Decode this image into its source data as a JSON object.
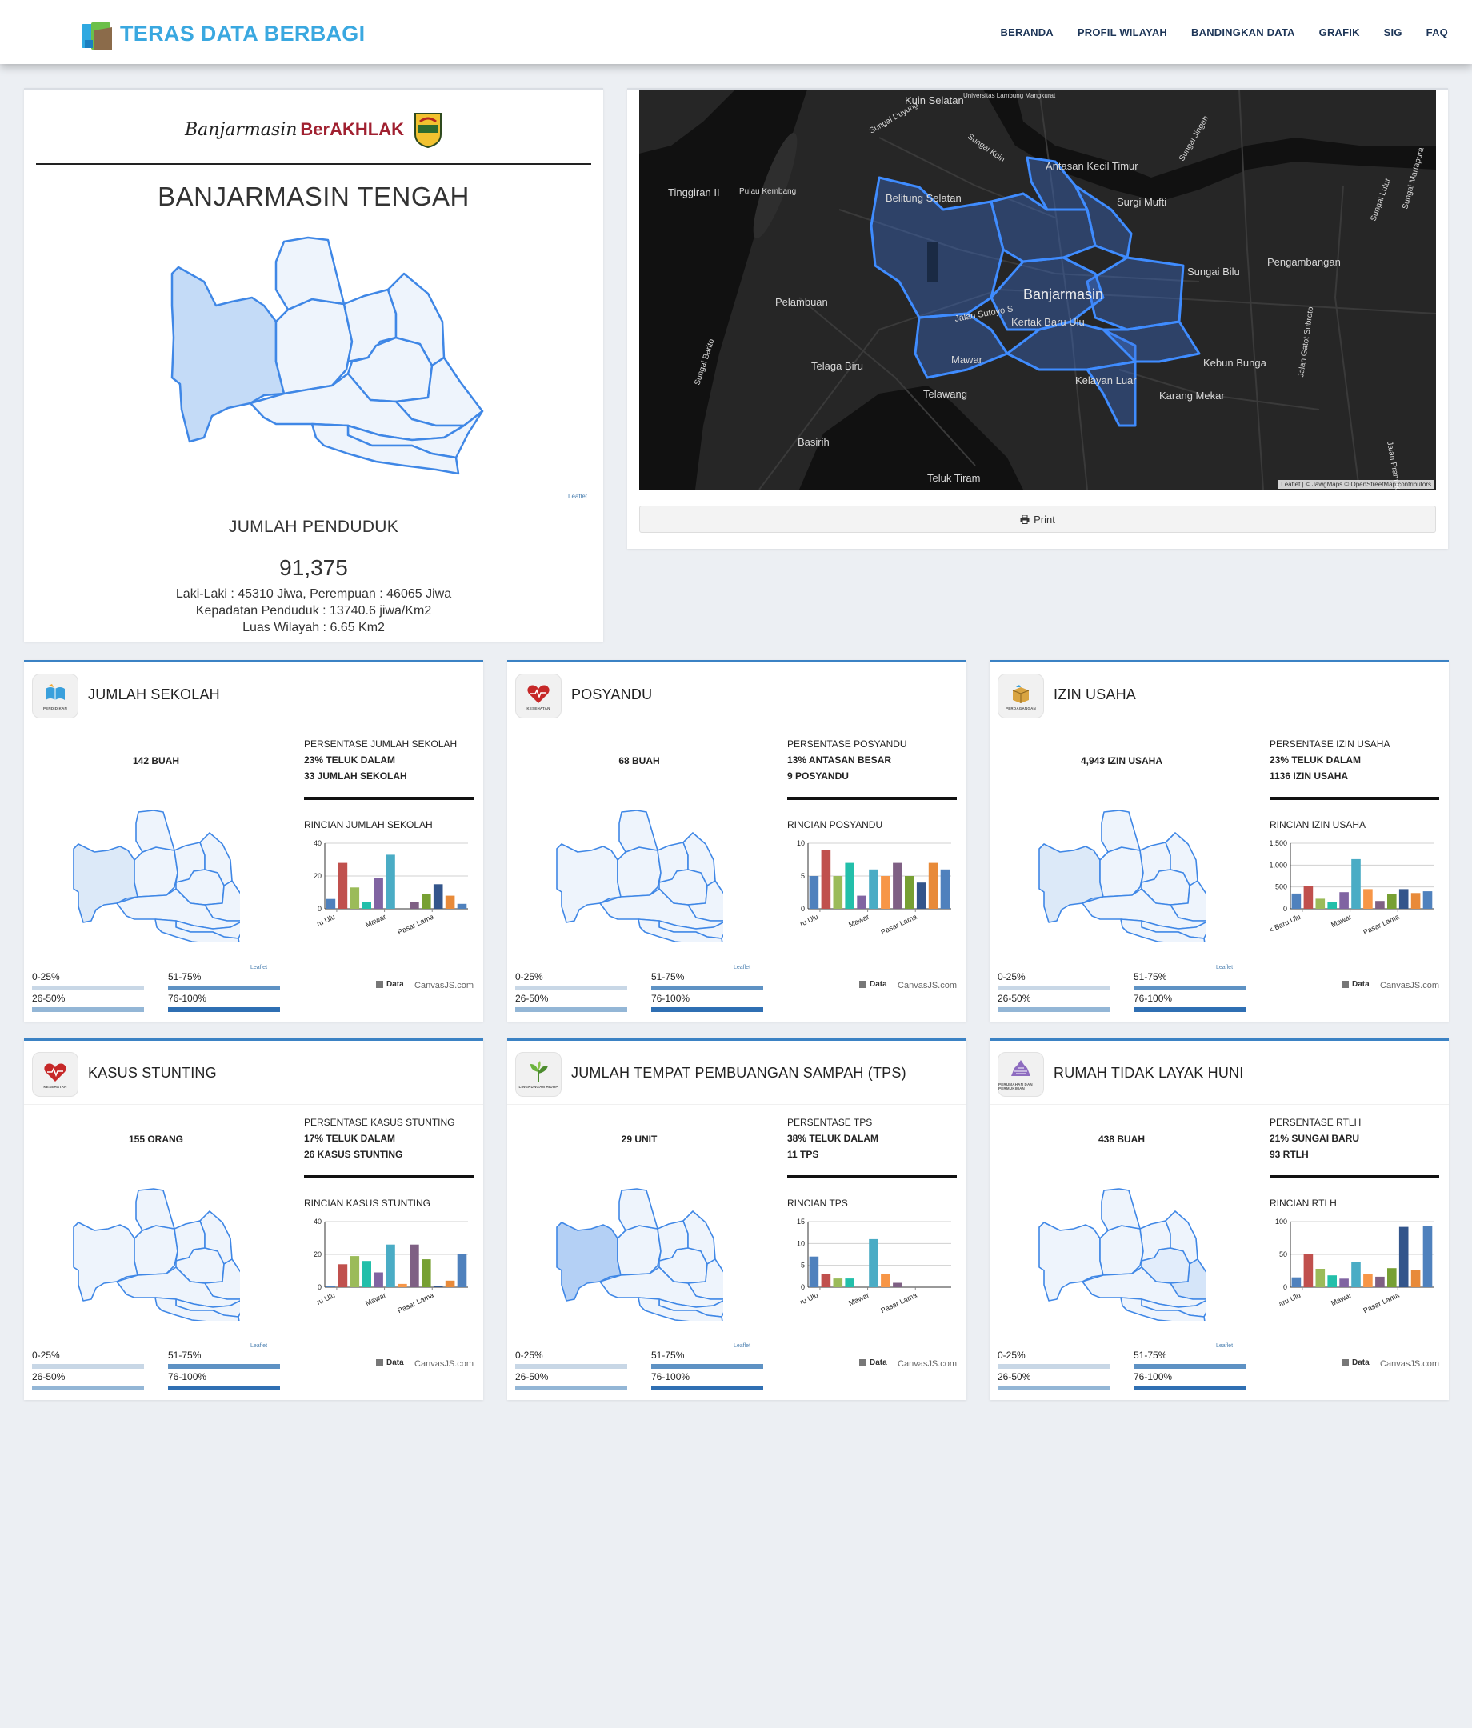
{
  "navbar": {
    "brand": "TERAS DATA BERBAGI",
    "items": [
      "BERANDA",
      "PROFIL WILAYAH",
      "BANDINGKAN DATA",
      "GRAFIK",
      "SIG",
      "FAQ"
    ]
  },
  "summary": {
    "logo_city": "Banjarmasin",
    "logo_slogan": "BerAKHLAK",
    "title": "BANJARMASIN TENGAH",
    "map_credit": "Leaflet",
    "pop_label": "JUMLAH PENDUDUK",
    "pop_value": "91,375",
    "line1": "Laki-Laki : 45310 Jiwa, Perempuan : 46065 Jiwa",
    "line2": "Kepadatan Penduduk : 13740.6 jiwa/Km2",
    "line3": "Luas Wilayah : 6.65 Km2"
  },
  "map": {
    "labels": [
      "Kuin Selatan",
      "Universitas Lambung Mangkurat",
      "Sungai Duyung",
      "Sungai Kuin",
      "Sungai Jingah",
      "Antasan Kecil Timur",
      "Tinggiran II",
      "Pulau Kembang",
      "Belitung Selatan",
      "Surgi Mufti",
      "Sungai Bilu",
      "Pengambangan",
      "Banjarmasin",
      "Pelambuan",
      "Jalan Sutoyo S",
      "Kertak Baru Ulu",
      "Sungai Lulut",
      "Mawar",
      "Telaga Biru",
      "Kebun Bunga",
      "Sungai Barito",
      "Jalan Gatot Subroto",
      "Jalan Pramuka",
      "Kelayan Luar",
      "Karang Mekar",
      "Telawang",
      "Basirih",
      "Teluk Tiram",
      "Sungai Martapura"
    ],
    "attribution": "Leaflet | © JawgMaps © OpenStreetMap contributors",
    "print_label": "Print"
  },
  "legend": [
    "0-25%",
    "26-50%",
    "51-75%",
    "76-100%"
  ],
  "legend_colors": [
    "#c8d7e6",
    "#93b6d6",
    "#5e92c4",
    "#2f6fb3"
  ],
  "bar_colors": [
    "#4f81bd",
    "#c0504d",
    "#9bbb59",
    "#23bfaa",
    "#8064a2",
    "#4aacc5",
    "#f79647",
    "#7f6084",
    "#77a033",
    "#33558b",
    "#e88a39",
    "#4f81bd"
  ],
  "chart_legend": "Data",
  "chart_credit": "CanvasJS.com",
  "map_credit": "Leaflet",
  "cards": [
    {
      "title": "JUMLAH SEKOLAH",
      "icon": "book-icon",
      "icon_caption": "PENDIDIKAN",
      "count": "142 BUAH",
      "stat_label": "PERSENTASE JUMLAH SEKOLAH",
      "stat_pct": "23% TELUK DALAM",
      "stat_val": "33 JUMLAH SEKOLAH",
      "rincian": "RINCIAN JUMLAH SEKOLAH",
      "highlight": 0,
      "chart_data": {
        "type": "bar",
        "ylim": [
          0,
          40
        ],
        "yticks": [
          "0",
          "20",
          "40"
        ],
        "xticks": [
          "ru Ulu",
          "Mawar",
          "Pasar Lama"
        ],
        "values": [
          6,
          28,
          13,
          4,
          19,
          33,
          0,
          4,
          9,
          15,
          8,
          3
        ]
      }
    },
    {
      "title": "POSYANDU",
      "icon": "heart-health-icon",
      "icon_caption": "KESEHATAN",
      "count": "68 BUAH",
      "stat_label": "PERSENTASE POSYANDU",
      "stat_pct": "13% ANTASAN BESAR",
      "stat_val": "9 POSYANDU",
      "rincian": "RINCIAN POSYANDU",
      "highlight": -1,
      "chart_data": {
        "type": "bar",
        "ylim": [
          0,
          10
        ],
        "yticks": [
          "0",
          "5",
          "10"
        ],
        "xticks": [
          "ru Ulu",
          "Mawar",
          "Pasar Lama"
        ],
        "values": [
          5,
          9,
          5,
          7,
          2,
          6,
          5,
          7,
          5,
          4,
          7,
          6
        ]
      }
    },
    {
      "title": "IZIN USAHA",
      "icon": "box-icon",
      "icon_caption": "PERDAGANGAN",
      "count": "4,943 IZIN USAHA",
      "stat_label": "PERSENTASE IZIN USAHA",
      "stat_pct": "23% TELUK DALAM",
      "stat_val": "1136 IZIN USAHA",
      "rincian": "RINCIAN IZIN USAHA",
      "highlight": 0,
      "chart_data": {
        "type": "bar",
        "ylim": [
          0,
          1500
        ],
        "yticks": [
          "0",
          "500",
          "1,000",
          "1,500"
        ],
        "xticks": [
          "< Baru Ulu",
          "Mawar",
          "Pasar Lama"
        ],
        "values": [
          350,
          530,
          230,
          160,
          380,
          1136,
          450,
          180,
          330,
          450,
          360,
          400
        ]
      }
    },
    {
      "title": "KASUS STUNTING",
      "icon": "heart-health-icon",
      "icon_caption": "KESEHATAN",
      "count": "155 ORANG",
      "stat_label": "PERSENTASE KASUS STUNTING",
      "stat_pct": "17% TELUK DALAM",
      "stat_val": "26 KASUS STUNTING",
      "rincian": "RINCIAN KASUS STUNTING",
      "highlight": -1,
      "chart_data": {
        "type": "bar",
        "ylim": [
          0,
          40
        ],
        "yticks": [
          "0",
          "20",
          "40"
        ],
        "xticks": [
          "ru Ulu",
          "Mawar",
          "Pasar Lama"
        ],
        "values": [
          1,
          14,
          19,
          16,
          9,
          26,
          2,
          26,
          17,
          1,
          4,
          20
        ]
      }
    },
    {
      "title": "JUMLAH TEMPAT PEMBUANGAN SAMPAH (TPS)",
      "icon": "plant-icon",
      "icon_caption": "LINGKUNGAN HIDUP",
      "count": "29 UNIT",
      "stat_label": "PERSENTASE TPS",
      "stat_pct": "38% TELUK DALAM",
      "stat_val": "11 TPS",
      "rincian": "RINCIAN TPS",
      "highlight": 1,
      "chart_data": {
        "type": "bar",
        "ylim": [
          0,
          15
        ],
        "yticks": [
          "0",
          "5",
          "10",
          "15"
        ],
        "xticks": [
          "ru Ulu",
          "Mawar",
          "Pasar Lama"
        ],
        "values": [
          7,
          3,
          2,
          2,
          0,
          11,
          3,
          1,
          0,
          0,
          0,
          0
        ]
      }
    },
    {
      "title": "RUMAH TIDAK LAYAK HUNI",
      "icon": "house-icon",
      "icon_caption": "PERUMAHAN DAN PERMUKIMAN",
      "count": "438 BUAH",
      "stat_label": "PERSENTASE RTLH",
      "stat_pct": "21% SUNGAI BARU",
      "stat_val": "93 RTLH",
      "rincian": "RINCIAN RTLH",
      "highlight": 2,
      "chart_data": {
        "type": "bar",
        "ylim": [
          0,
          100
        ],
        "yticks": [
          "0",
          "50",
          "100"
        ],
        "xticks": [
          "aru Ulu",
          "Mawar",
          "Pasar Lama"
        ],
        "values": [
          15,
          50,
          28,
          18,
          13,
          38,
          20,
          16,
          29,
          92,
          26,
          93
        ]
      }
    }
  ]
}
